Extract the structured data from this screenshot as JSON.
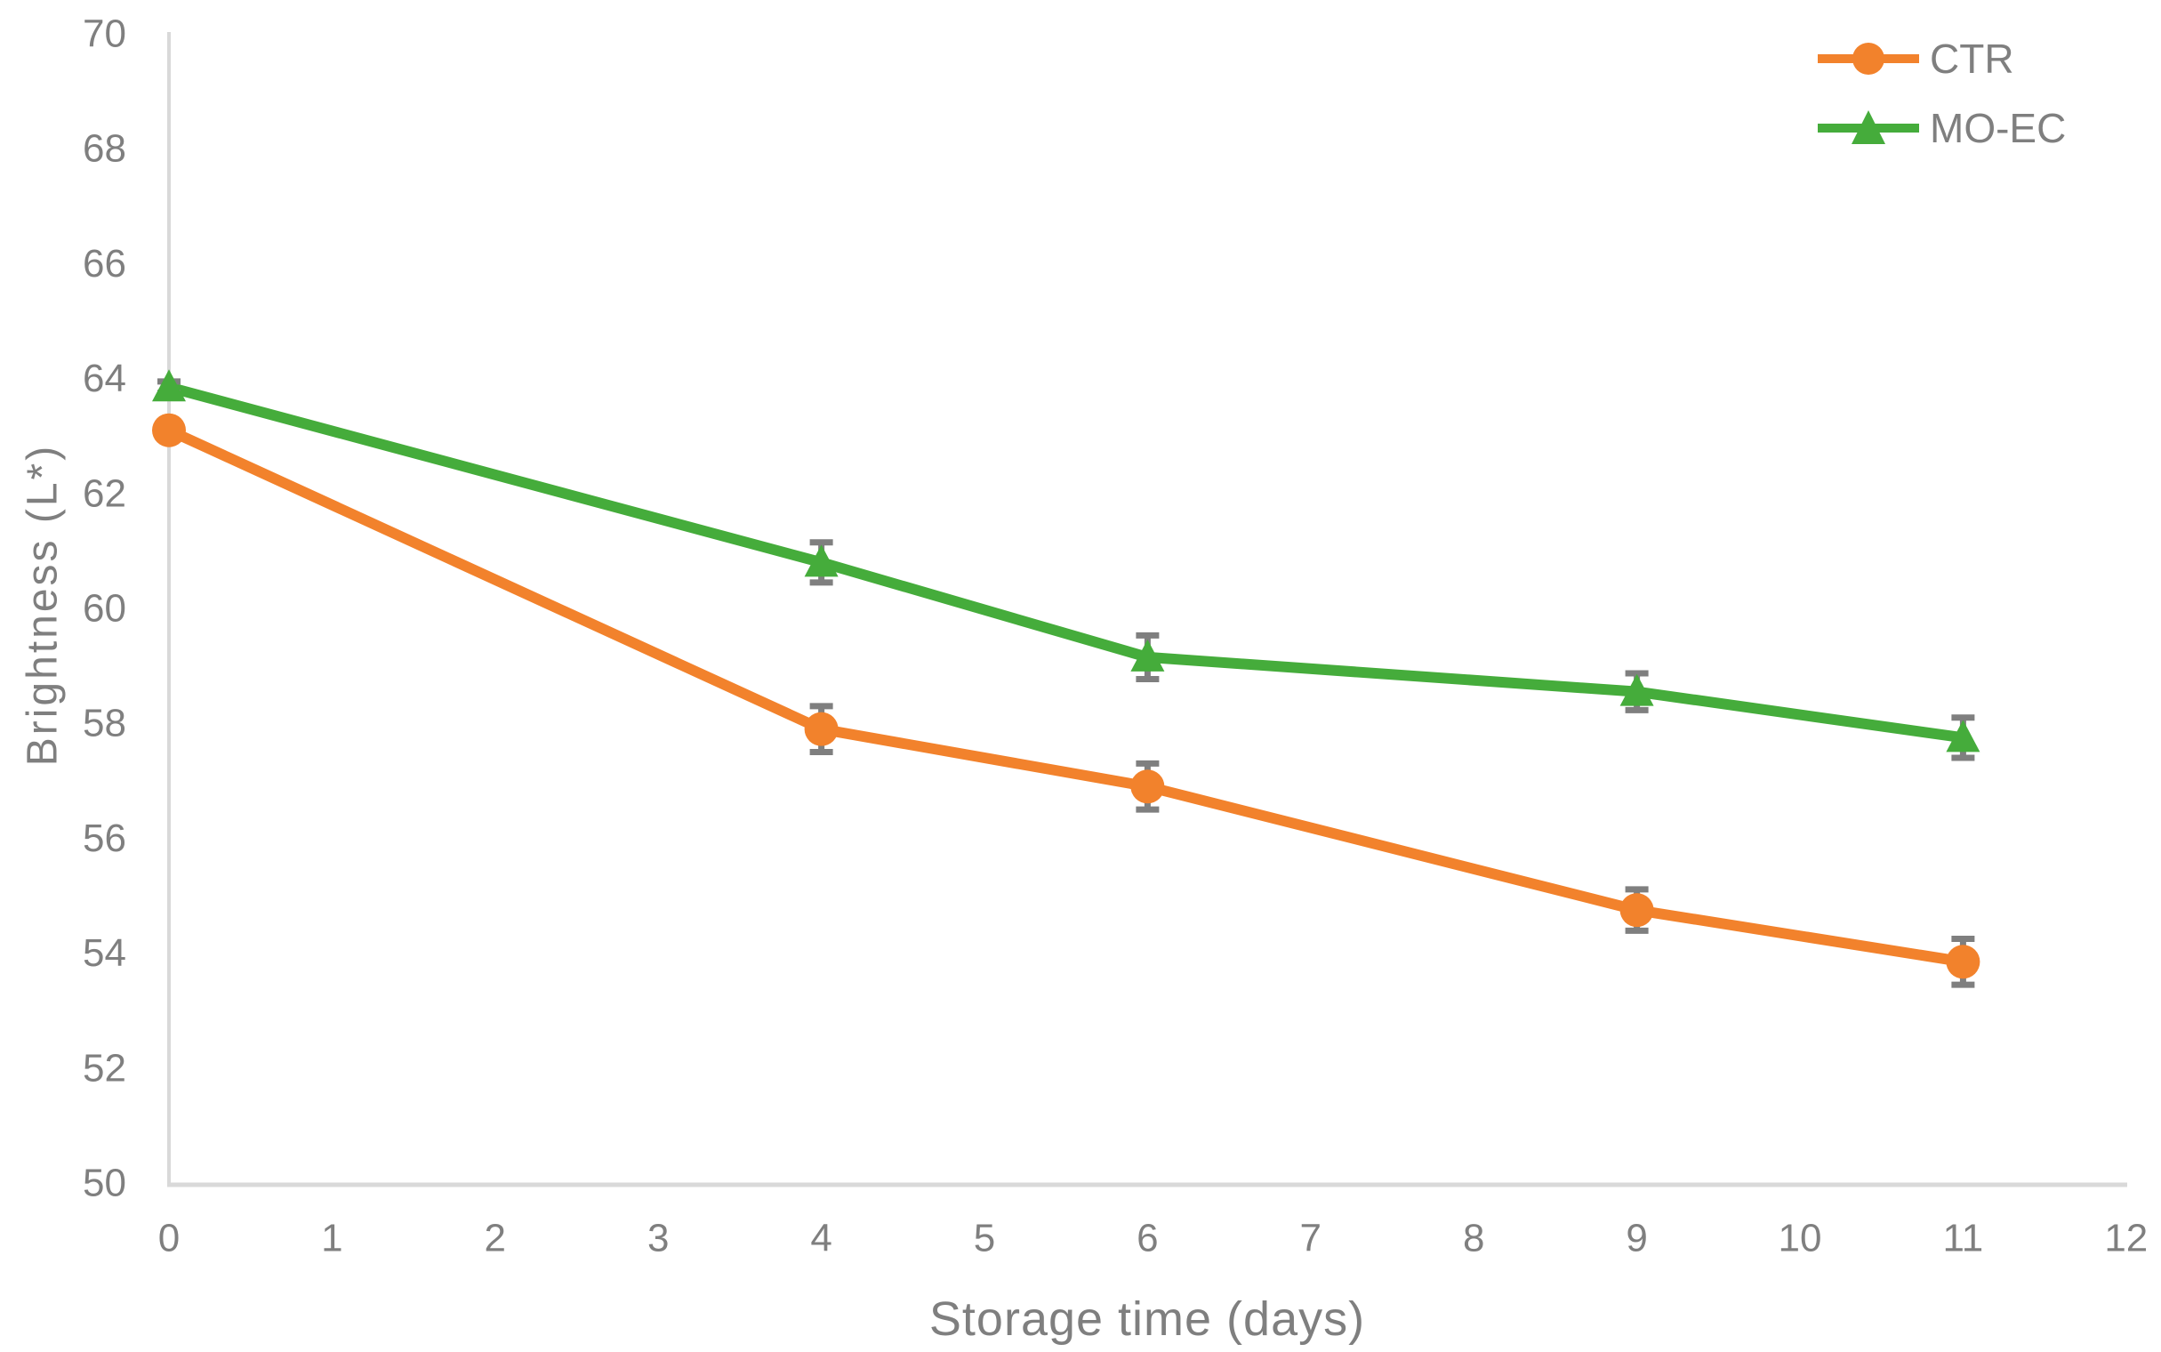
{
  "chart_data": {
    "type": "line",
    "title": "",
    "xlabel": "Storage time (days)",
    "ylabel": "Brightness  (L*)",
    "x": [
      0,
      4,
      6,
      9,
      11
    ],
    "series": [
      {
        "name": "CTR",
        "marker": "circle",
        "color": "#F2822C",
        "values": [
          63.1,
          57.9,
          56.9,
          54.75,
          53.85
        ],
        "yerr": [
          0.1,
          0.4,
          0.4,
          0.36,
          0.4
        ]
      },
      {
        "name": "MO-EC",
        "marker": "triangle",
        "color": "#45AC3B",
        "values": [
          63.85,
          60.8,
          59.15,
          58.55,
          57.75
        ],
        "yerr": [
          0.1,
          0.35,
          0.38,
          0.32,
          0.35
        ]
      }
    ],
    "xlim": [
      0,
      12
    ],
    "ylim": [
      50,
      70
    ],
    "x_ticks": [
      0,
      1,
      2,
      3,
      4,
      5,
      6,
      7,
      8,
      9,
      10,
      11,
      12
    ],
    "y_ticks": [
      50,
      52,
      54,
      56,
      58,
      60,
      62,
      64,
      66,
      68,
      70
    ],
    "grid": false,
    "legend_position": "top-right",
    "error_bars": true,
    "colors": {
      "axis_line": "#D9D9D9",
      "tick_label": "#7F7F7F",
      "axis_title": "#7F7F7F",
      "error_bar": "#7F7F7F"
    }
  }
}
